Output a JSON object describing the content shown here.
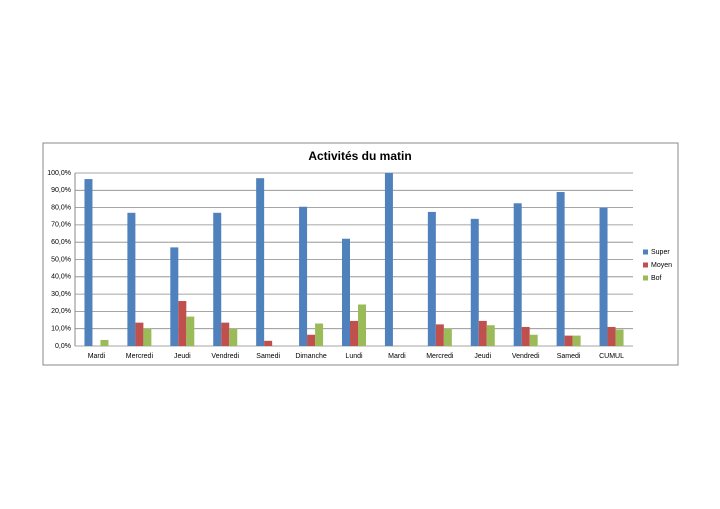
{
  "chart_data": {
    "type": "bar",
    "title": "Activités du matin",
    "categories": [
      "Mardi",
      "Mercredi",
      "Jeudi",
      "Vendredi",
      "Samedi",
      "Dimanche",
      "Lundi",
      "Mardi",
      "Mercredi",
      "Jeudi",
      "Vendredi",
      "Samedi",
      "CUMUL"
    ],
    "series": [
      {
        "name": "Super",
        "color": "#4f81bd",
        "values": [
          96.5,
          77,
          57,
          77,
          97,
          80.5,
          62,
          100,
          77.5,
          73.5,
          82.5,
          89,
          80
        ]
      },
      {
        "name": "Moyen",
        "color": "#c0504d",
        "values": [
          0,
          13.5,
          26,
          13.5,
          3,
          6.5,
          14.5,
          0,
          12.5,
          14.5,
          11,
          6,
          11
        ]
      },
      {
        "name": "Bof",
        "color": "#9bbb59",
        "values": [
          3.5,
          10,
          17,
          10,
          0,
          13,
          24,
          0,
          10,
          12,
          6.5,
          6,
          9.5
        ]
      }
    ],
    "ylim": [
      0,
      100
    ],
    "yticks": [
      {
        "value": 0,
        "label": "0,0%"
      },
      {
        "value": 10,
        "label": "10,0%"
      },
      {
        "value": 20,
        "label": "20,0%"
      },
      {
        "value": 30,
        "label": "30,0%"
      },
      {
        "value": 40,
        "label": "40,0%"
      },
      {
        "value": 50,
        "label": "50,0%"
      },
      {
        "value": 60,
        "label": "60,0%"
      },
      {
        "value": 70,
        "label": "70,0%"
      },
      {
        "value": 80,
        "label": "80,0%"
      },
      {
        "value": 90,
        "label": "90,0%"
      },
      {
        "value": 100,
        "label": "100,0%"
      }
    ],
    "grid": true,
    "legend": "right"
  }
}
